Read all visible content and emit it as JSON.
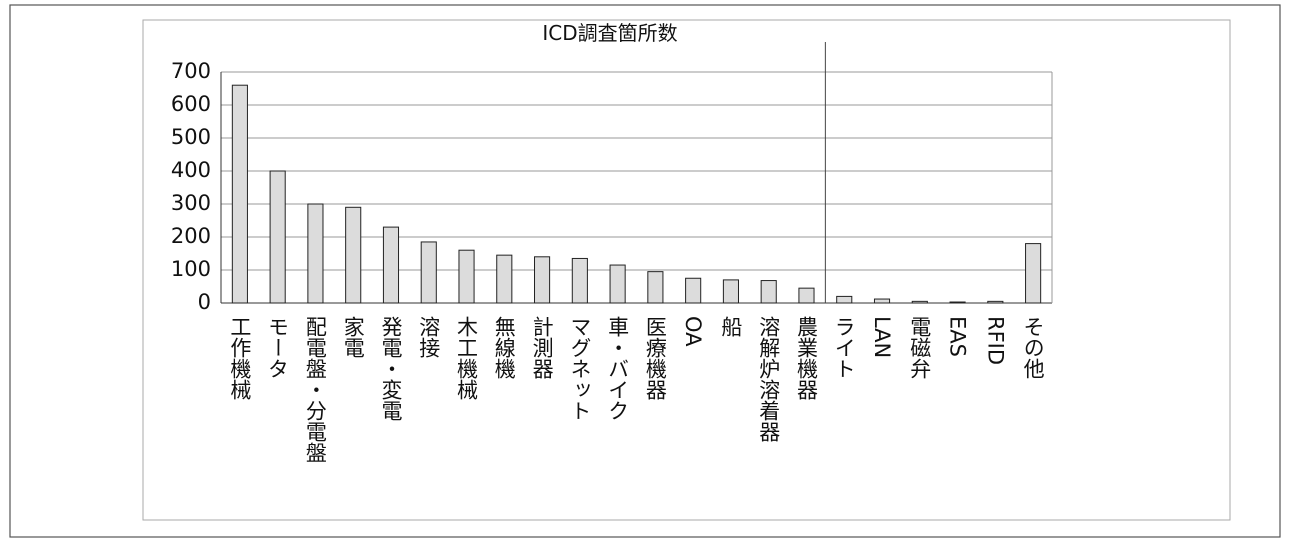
{
  "chart_data": {
    "type": "bar",
    "title": "ICD調査箇所数",
    "categories": [
      "工作機械",
      "モータ",
      "配電盤・分電盤",
      "家電",
      "発電・変電",
      "溶接",
      "木工機械",
      "無線機",
      "計測器",
      "マグネット",
      "車・バイク",
      "医療機器",
      "OA",
      "船",
      "溶解炉溶着器",
      "農業機器",
      "ライト",
      "LAN",
      "電磁弁",
      "EAS",
      "RFID",
      "その他"
    ],
    "values": [
      660,
      400,
      300,
      290,
      230,
      185,
      160,
      145,
      140,
      135,
      115,
      95,
      75,
      70,
      68,
      45,
      20,
      12,
      5,
      3,
      5,
      180
    ],
    "color": "#dcdcdc",
    "ylim": [
      0,
      700
    ],
    "yticks": [
      0,
      100,
      200,
      300,
      400,
      500,
      600,
      700
    ],
    "grid": true
  }
}
